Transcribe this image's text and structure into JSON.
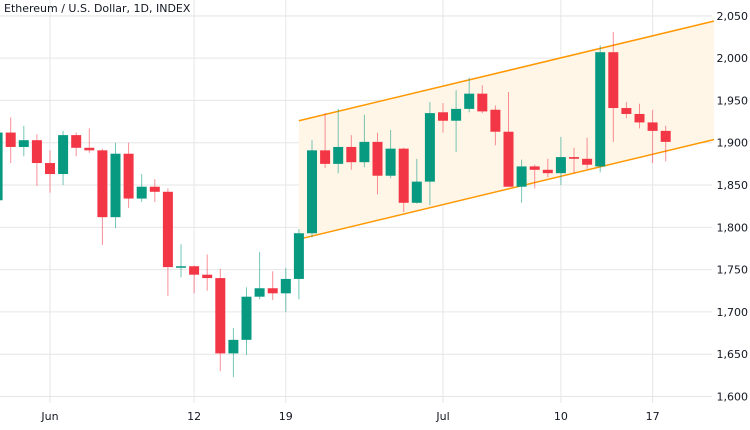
{
  "header": {
    "title": "Ethereum / U.S. Dollar, 1D, INDEX"
  },
  "colors": {
    "up": "#089981",
    "down": "#f23645",
    "channel": "#ff9800",
    "channel_fill": "#fff6e8",
    "grid": "#e6e6e6"
  },
  "chart_data": {
    "type": "candlestick",
    "title": "Ethereum / U.S. Dollar, 1D, INDEX",
    "day_unit": "days since Jun 1",
    "ylim": [
      1580,
      2068
    ],
    "yticks": [
      2050,
      2000,
      1950,
      1900,
      1850,
      1800,
      1750,
      1700,
      1650,
      1600
    ],
    "ytick_labels": [
      "2,050",
      "2,000",
      "1,950",
      "1,900",
      "1,850",
      "1,800",
      "1,750",
      "1,700",
      "1,650",
      "1,600"
    ],
    "xticks": [
      {
        "day": 0,
        "label": "Jun"
      },
      {
        "day": 11,
        "label": "12"
      },
      {
        "day": 18,
        "label": "19"
      },
      {
        "day": 30,
        "label": "Jul"
      },
      {
        "day": 39,
        "label": "10"
      },
      {
        "day": 46,
        "label": "17"
      }
    ],
    "candles": [
      {
        "day": -4,
        "o": 1832,
        "h": 1915,
        "l": 1826,
        "c": 1912
      },
      {
        "day": -3,
        "o": 1912,
        "h": 1930,
        "l": 1876,
        "c": 1895
      },
      {
        "day": -2,
        "o": 1895,
        "h": 1920,
        "l": 1884,
        "c": 1903
      },
      {
        "day": -1,
        "o": 1903,
        "h": 1910,
        "l": 1849,
        "c": 1876
      },
      {
        "day": 0,
        "o": 1876,
        "h": 1891,
        "l": 1841,
        "c": 1863
      },
      {
        "day": 1,
        "o": 1863,
        "h": 1914,
        "l": 1850,
        "c": 1909
      },
      {
        "day": 2,
        "o": 1909,
        "h": 1912,
        "l": 1884,
        "c": 1894
      },
      {
        "day": 3,
        "o": 1894,
        "h": 1917,
        "l": 1888,
        "c": 1891
      },
      {
        "day": 4,
        "o": 1891,
        "h": 1893,
        "l": 1779,
        "c": 1812
      },
      {
        "day": 5,
        "o": 1812,
        "h": 1900,
        "l": 1799,
        "c": 1887
      },
      {
        "day": 6,
        "o": 1887,
        "h": 1900,
        "l": 1823,
        "c": 1834
      },
      {
        "day": 7,
        "o": 1834,
        "h": 1863,
        "l": 1830,
        "c": 1848
      },
      {
        "day": 8,
        "o": 1848,
        "h": 1857,
        "l": 1830,
        "c": 1842
      },
      {
        "day": 9,
        "o": 1842,
        "h": 1846,
        "l": 1719,
        "c": 1753
      },
      {
        "day": 10,
        "o": 1753,
        "h": 1780,
        "l": 1741,
        "c": 1754
      },
      {
        "day": 11,
        "o": 1754,
        "h": 1755,
        "l": 1722,
        "c": 1744
      },
      {
        "day": 12,
        "o": 1744,
        "h": 1768,
        "l": 1725,
        "c": 1740
      },
      {
        "day": 13,
        "o": 1740,
        "h": 1751,
        "l": 1630,
        "c": 1651
      },
      {
        "day": 14,
        "o": 1651,
        "h": 1681,
        "l": 1623,
        "c": 1667
      },
      {
        "day": 15,
        "o": 1667,
        "h": 1729,
        "l": 1649,
        "c": 1718
      },
      {
        "day": 16,
        "o": 1718,
        "h": 1771,
        "l": 1715,
        "c": 1728
      },
      {
        "day": 17,
        "o": 1728,
        "h": 1748,
        "l": 1714,
        "c": 1722
      },
      {
        "day": 18,
        "o": 1722,
        "h": 1752,
        "l": 1700,
        "c": 1739
      },
      {
        "day": 19,
        "o": 1739,
        "h": 1798,
        "l": 1715,
        "c": 1793
      },
      {
        "day": 20,
        "o": 1793,
        "h": 1903,
        "l": 1788,
        "c": 1891
      },
      {
        "day": 21,
        "o": 1891,
        "h": 1935,
        "l": 1870,
        "c": 1875
      },
      {
        "day": 22,
        "o": 1875,
        "h": 1940,
        "l": 1864,
        "c": 1895
      },
      {
        "day": 23,
        "o": 1895,
        "h": 1909,
        "l": 1868,
        "c": 1877
      },
      {
        "day": 24,
        "o": 1877,
        "h": 1933,
        "l": 1871,
        "c": 1901
      },
      {
        "day": 25,
        "o": 1901,
        "h": 1912,
        "l": 1839,
        "c": 1861
      },
      {
        "day": 26,
        "o": 1861,
        "h": 1915,
        "l": 1858,
        "c": 1893
      },
      {
        "day": 27,
        "o": 1893,
        "h": 1894,
        "l": 1818,
        "c": 1829
      },
      {
        "day": 28,
        "o": 1829,
        "h": 1881,
        "l": 1828,
        "c": 1854
      },
      {
        "day": 29,
        "o": 1854,
        "h": 1948,
        "l": 1826,
        "c": 1935
      },
      {
        "day": 30,
        "o": 1936,
        "h": 1947,
        "l": 1912,
        "c": 1926
      },
      {
        "day": 31,
        "o": 1926,
        "h": 1962,
        "l": 1889,
        "c": 1940
      },
      {
        "day": 32,
        "o": 1940,
        "h": 1977,
        "l": 1936,
        "c": 1958
      },
      {
        "day": 33,
        "o": 1958,
        "h": 1968,
        "l": 1935,
        "c": 1937
      },
      {
        "day": 34,
        "o": 1939,
        "h": 1944,
        "l": 1897,
        "c": 1913
      },
      {
        "day": 35,
        "o": 1913,
        "h": 1960,
        "l": 1848,
        "c": 1848
      },
      {
        "day": 36,
        "o": 1848,
        "h": 1880,
        "l": 1829,
        "c": 1872
      },
      {
        "day": 37,
        "o": 1872,
        "h": 1874,
        "l": 1846,
        "c": 1868
      },
      {
        "day": 38,
        "o": 1868,
        "h": 1881,
        "l": 1859,
        "c": 1864
      },
      {
        "day": 39,
        "o": 1864,
        "h": 1907,
        "l": 1850,
        "c": 1883
      },
      {
        "day": 40,
        "o": 1883,
        "h": 1894,
        "l": 1864,
        "c": 1881
      },
      {
        "day": 41,
        "o": 1881,
        "h": 1906,
        "l": 1869,
        "c": 1874
      },
      {
        "day": 42,
        "o": 1872,
        "h": 2015,
        "l": 1865,
        "c": 2007
      },
      {
        "day": 43,
        "o": 2007,
        "h": 2031,
        "l": 1901,
        "c": 1941
      },
      {
        "day": 44,
        "o": 1941,
        "h": 1948,
        "l": 1929,
        "c": 1934
      },
      {
        "day": 45,
        "o": 1934,
        "h": 1946,
        "l": 1917,
        "c": 1924
      },
      {
        "day": 46,
        "o": 1924,
        "h": 1939,
        "l": 1876,
        "c": 1914
      },
      {
        "day": 47,
        "o": 1914,
        "h": 1920,
        "l": 1878,
        "c": 1901
      }
    ],
    "channel": {
      "type": "ascending parallel channel",
      "start_day": 19,
      "end_day": 52.1,
      "upper": [
        1926,
        2049
      ],
      "lower": [
        1786,
        1909
      ]
    },
    "grid": true
  }
}
